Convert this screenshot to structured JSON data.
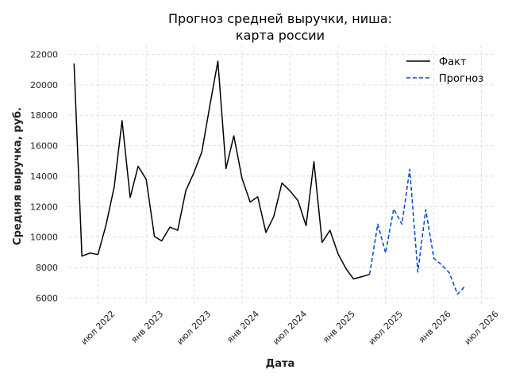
{
  "chart_data": {
    "type": "line",
    "title": "Прогноз средней выручки, ниша:\nкарта россии",
    "title_lines": [
      "Прогноз средней выручки, ниша:",
      "карта россии"
    ],
    "xlabel": "Дата",
    "ylabel": "Средняя выручка, руб.",
    "ylim": [
      5500,
      22600
    ],
    "xlim": [
      "2022-03-10",
      "2026-08-20"
    ],
    "yticks": [
      6000,
      8000,
      10000,
      12000,
      14000,
      16000,
      18000,
      20000,
      22000
    ],
    "xticks": [
      {
        "date": "2022-07-01",
        "label": "июл 2022"
      },
      {
        "date": "2023-01-01",
        "label": "янв 2023"
      },
      {
        "date": "2023-07-01",
        "label": "июл 2023"
      },
      {
        "date": "2024-01-01",
        "label": "янв 2024"
      },
      {
        "date": "2024-07-01",
        "label": "июл 2024"
      },
      {
        "date": "2025-01-01",
        "label": "янв 2025"
      },
      {
        "date": "2025-07-01",
        "label": "июл 2025"
      },
      {
        "date": "2026-01-01",
        "label": "янв 2026"
      },
      {
        "date": "2026-07-01",
        "label": "июл 2026"
      }
    ],
    "grid": true,
    "legend_position": "top-right",
    "series": [
      {
        "name": "Факт",
        "color": "#000000",
        "style": "solid",
        "points": [
          {
            "x": "2022-04-01",
            "y": 21400
          },
          {
            "x": "2022-05-01",
            "y": 8750
          },
          {
            "x": "2022-06-01",
            "y": 8950
          },
          {
            "x": "2022-07-01",
            "y": 8850
          },
          {
            "x": "2022-08-01",
            "y": 10800
          },
          {
            "x": "2022-09-01",
            "y": 13300
          },
          {
            "x": "2022-10-01",
            "y": 17650
          },
          {
            "x": "2022-11-01",
            "y": 12600
          },
          {
            "x": "2022-12-01",
            "y": 14650
          },
          {
            "x": "2023-01-01",
            "y": 13800
          },
          {
            "x": "2023-02-01",
            "y": 10050
          },
          {
            "x": "2023-03-01",
            "y": 9750
          },
          {
            "x": "2023-04-01",
            "y": 10650
          },
          {
            "x": "2023-05-01",
            "y": 10450
          },
          {
            "x": "2023-06-01",
            "y": 13050
          },
          {
            "x": "2023-07-01",
            "y": 14200
          },
          {
            "x": "2023-08-01",
            "y": 15600
          },
          {
            "x": "2023-09-01",
            "y": 18700
          },
          {
            "x": "2023-10-01",
            "y": 21550
          },
          {
            "x": "2023-11-01",
            "y": 14500
          },
          {
            "x": "2023-12-01",
            "y": 16650
          },
          {
            "x": "2024-01-01",
            "y": 13850
          },
          {
            "x": "2024-02-01",
            "y": 12300
          },
          {
            "x": "2024-03-01",
            "y": 12650
          },
          {
            "x": "2024-04-01",
            "y": 10300
          },
          {
            "x": "2024-05-01",
            "y": 11350
          },
          {
            "x": "2024-06-01",
            "y": 13550
          },
          {
            "x": "2024-07-01",
            "y": 13050
          },
          {
            "x": "2024-08-01",
            "y": 12400
          },
          {
            "x": "2024-09-01",
            "y": 10750
          },
          {
            "x": "2024-10-01",
            "y": 14950
          },
          {
            "x": "2024-11-01",
            "y": 9650
          },
          {
            "x": "2024-12-01",
            "y": 10450
          },
          {
            "x": "2025-01-01",
            "y": 8900
          },
          {
            "x": "2025-02-01",
            "y": 7900
          },
          {
            "x": "2025-03-01",
            "y": 7250
          },
          {
            "x": "2025-04-01",
            "y": 7400
          },
          {
            "x": "2025-05-01",
            "y": 7550
          }
        ]
      },
      {
        "name": "Прогноз",
        "color": "#0044cc",
        "style": "dashed",
        "points": [
          {
            "x": "2025-05-01",
            "y": 7550
          },
          {
            "x": "2025-06-01",
            "y": 10850
          },
          {
            "x": "2025-07-01",
            "y": 8950
          },
          {
            "x": "2025-08-01",
            "y": 11850
          },
          {
            "x": "2025-09-01",
            "y": 10850
          },
          {
            "x": "2025-10-01",
            "y": 14450
          },
          {
            "x": "2025-11-01",
            "y": 7700
          },
          {
            "x": "2025-12-01",
            "y": 11800
          },
          {
            "x": "2026-01-01",
            "y": 8600
          },
          {
            "x": "2026-02-01",
            "y": 8150
          },
          {
            "x": "2026-03-01",
            "y": 7650
          },
          {
            "x": "2026-04-01",
            "y": 6250
          },
          {
            "x": "2026-05-01",
            "y": 6800
          }
        ]
      }
    ]
  }
}
